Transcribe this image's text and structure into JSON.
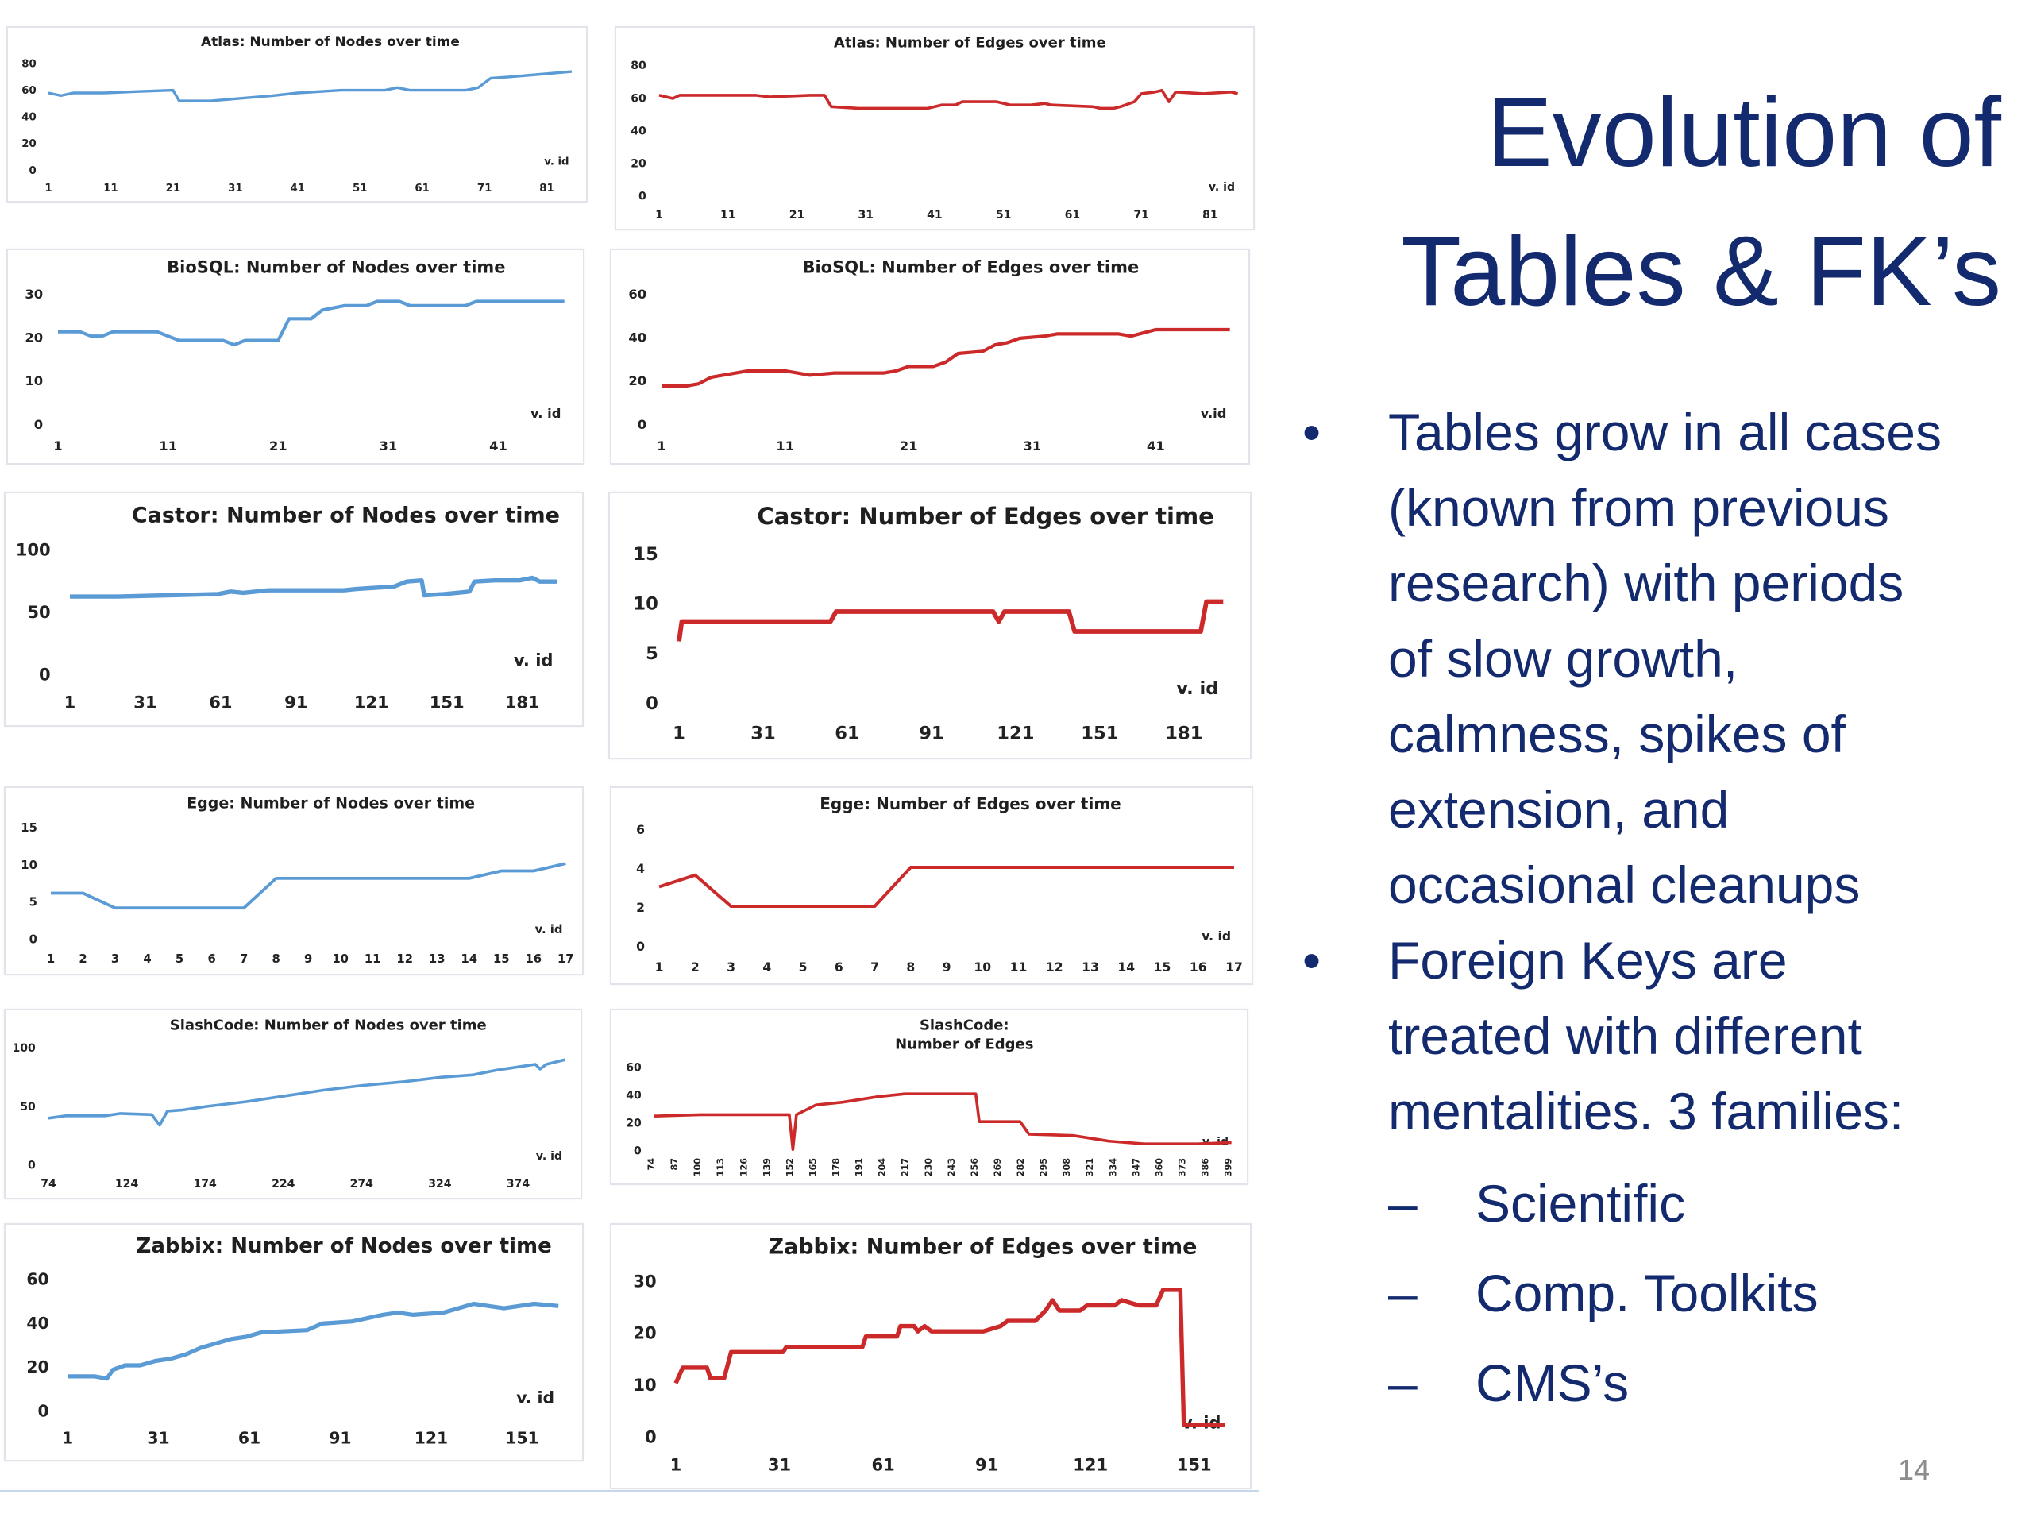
{
  "slide": {
    "title_lines": [
      "Evolution of",
      "Tables & FK’s"
    ],
    "bullets": [
      {
        "lines": [
          "Tables grow in all cases",
          "(known from previous",
          "research) with periods",
          "of slow growth,",
          "calmness, spikes of",
          "extension, and",
          "occasional cleanups"
        ]
      },
      {
        "lines": [
          "Foreign Keys are",
          "treated with different",
          "mentalities. 3 families:"
        ],
        "sub": [
          "Scientific",
          "Comp. Toolkits",
          "CMS’s"
        ]
      }
    ],
    "bullet_glyph": "•",
    "dash_glyph": "–",
    "page_number": "14"
  },
  "colors": {
    "nodes": "#5b9bd5",
    "edges": "#cc2a2a",
    "title": "#132a6e"
  },
  "chart_data": [
    {
      "type": "line",
      "title": "Atlas: Number of Nodes over time",
      "xlabel": "v. id",
      "color": "nodes",
      "yticks": [
        0,
        20,
        40,
        60,
        80
      ],
      "ylim": [
        0,
        80
      ],
      "xlim": [
        1,
        85
      ],
      "xticks": [
        1,
        11,
        21,
        31,
        41,
        51,
        61,
        71,
        81
      ],
      "points": [
        [
          1,
          57
        ],
        [
          3,
          55
        ],
        [
          5,
          57
        ],
        [
          10,
          57
        ],
        [
          15,
          58
        ],
        [
          21,
          59
        ],
        [
          22,
          51
        ],
        [
          27,
          51
        ],
        [
          32,
          53
        ],
        [
          37,
          55
        ],
        [
          41,
          57
        ],
        [
          48,
          59
        ],
        [
          55,
          59
        ],
        [
          57,
          61
        ],
        [
          59,
          59
        ],
        [
          68,
          59
        ],
        [
          70,
          61
        ],
        [
          72,
          68
        ],
        [
          75,
          69
        ],
        [
          80,
          71
        ],
        [
          85,
          73
        ]
      ]
    },
    {
      "type": "line",
      "title": "Atlas: Number of Edges over time",
      "xlabel": "v. id",
      "color": "edges",
      "yticks": [
        0,
        20,
        40,
        60,
        80
      ],
      "ylim": [
        0,
        80
      ],
      "xlim": [
        1,
        85
      ],
      "xticks": [
        1,
        11,
        21,
        31,
        41,
        51,
        61,
        71,
        81
      ],
      "points": [
        [
          1,
          61
        ],
        [
          3,
          59
        ],
        [
          4,
          61
        ],
        [
          15,
          61
        ],
        [
          17,
          60
        ],
        [
          23,
          61
        ],
        [
          25,
          61
        ],
        [
          26,
          54
        ],
        [
          30,
          53
        ],
        [
          40,
          53
        ],
        [
          42,
          55
        ],
        [
          44,
          55
        ],
        [
          45,
          57
        ],
        [
          50,
          57
        ],
        [
          52,
          55
        ],
        [
          55,
          55
        ],
        [
          57,
          56
        ],
        [
          58,
          55
        ],
        [
          64,
          54
        ],
        [
          65,
          53
        ],
        [
          67,
          53
        ],
        [
          68,
          54
        ],
        [
          70,
          57
        ],
        [
          71,
          62
        ],
        [
          73,
          63
        ],
        [
          74,
          64
        ],
        [
          75,
          57
        ],
        [
          76,
          63
        ],
        [
          80,
          62
        ],
        [
          84,
          63
        ],
        [
          85,
          62
        ]
      ]
    },
    {
      "type": "line",
      "title": "BioSQL: Number of Nodes over time",
      "xlabel": "v. id",
      "color": "nodes",
      "yticks": [
        0,
        10,
        20,
        30
      ],
      "ylim": [
        0,
        30
      ],
      "xlim": [
        1,
        47
      ],
      "xticks": [
        1,
        11,
        21,
        31,
        41
      ],
      "points": [
        [
          1,
          21
        ],
        [
          3,
          21
        ],
        [
          4,
          20
        ],
        [
          5,
          20
        ],
        [
          6,
          21
        ],
        [
          10,
          21
        ],
        [
          11,
          20
        ],
        [
          12,
          19
        ],
        [
          16,
          19
        ],
        [
          17,
          18
        ],
        [
          18,
          19
        ],
        [
          21,
          19
        ],
        [
          22,
          24
        ],
        [
          24,
          24
        ],
        [
          25,
          26
        ],
        [
          27,
          27
        ],
        [
          29,
          27
        ],
        [
          30,
          28
        ],
        [
          32,
          28
        ],
        [
          33,
          27
        ],
        [
          38,
          27
        ],
        [
          39,
          28
        ],
        [
          47,
          28
        ]
      ]
    },
    {
      "type": "line",
      "title": "BioSQL: Number of Edges over time",
      "xlabel": "v.id",
      "color": "edges",
      "yticks": [
        0,
        20,
        40,
        60
      ],
      "ylim": [
        0,
        60
      ],
      "xlim": [
        1,
        47
      ],
      "xticks": [
        1,
        11,
        21,
        31,
        41
      ],
      "points": [
        [
          1,
          17
        ],
        [
          3,
          17
        ],
        [
          4,
          18
        ],
        [
          5,
          21
        ],
        [
          6,
          22
        ],
        [
          8,
          24
        ],
        [
          11,
          24
        ],
        [
          12,
          23
        ],
        [
          13,
          22
        ],
        [
          15,
          23
        ],
        [
          19,
          23
        ],
        [
          20,
          24
        ],
        [
          21,
          26
        ],
        [
          23,
          26
        ],
        [
          24,
          28
        ],
        [
          25,
          32
        ],
        [
          27,
          33
        ],
        [
          28,
          36
        ],
        [
          29,
          37
        ],
        [
          30,
          39
        ],
        [
          32,
          40
        ],
        [
          33,
          41
        ],
        [
          38,
          41
        ],
        [
          39,
          40
        ],
        [
          41,
          43
        ],
        [
          47,
          43
        ]
      ]
    },
    {
      "type": "line",
      "title": "Castor: Number of Nodes over time",
      "xlabel": "v. id",
      "color": "nodes",
      "yticks": [
        0,
        50,
        100
      ],
      "ylim": [
        0,
        100
      ],
      "xlim": [
        1,
        195
      ],
      "xticks": [
        1,
        31,
        61,
        91,
        121,
        151,
        181
      ],
      "points": [
        [
          1,
          61
        ],
        [
          20,
          61
        ],
        [
          40,
          62
        ],
        [
          60,
          63
        ],
        [
          65,
          65
        ],
        [
          70,
          64
        ],
        [
          80,
          66
        ],
        [
          110,
          66
        ],
        [
          115,
          67
        ],
        [
          130,
          69
        ],
        [
          135,
          73
        ],
        [
          141,
          74
        ],
        [
          142,
          62
        ],
        [
          150,
          63
        ],
        [
          155,
          64
        ],
        [
          160,
          65
        ],
        [
          162,
          73
        ],
        [
          170,
          74
        ],
        [
          180,
          74
        ],
        [
          185,
          76
        ],
        [
          188,
          73
        ],
        [
          195,
          73
        ]
      ]
    },
    {
      "type": "line",
      "title": "Castor: Number of Edges over time",
      "xlabel": "v. id",
      "color": "edges",
      "yticks": [
        0,
        5,
        10,
        15
      ],
      "ylim": [
        0,
        15
      ],
      "xlim": [
        1,
        195
      ],
      "xticks": [
        1,
        31,
        61,
        91,
        121,
        151,
        181
      ],
      "points": [
        [
          1,
          6
        ],
        [
          2,
          8
        ],
        [
          55,
          8
        ],
        [
          57,
          9
        ],
        [
          113,
          9
        ],
        [
          115,
          8
        ],
        [
          117,
          9
        ],
        [
          140,
          9
        ],
        [
          142,
          7
        ],
        [
          187,
          7
        ],
        [
          189,
          10
        ],
        [
          195,
          10
        ]
      ]
    },
    {
      "type": "line",
      "title": "Egge: Number of Nodes over time",
      "xlabel": "v. id",
      "color": "nodes",
      "yticks": [
        0,
        5,
        10,
        15
      ],
      "ylim": [
        0,
        15
      ],
      "xlim": [
        1,
        17
      ],
      "xticks": [
        1,
        2,
        3,
        4,
        5,
        6,
        7,
        8,
        9,
        10,
        11,
        12,
        13,
        14,
        15,
        16,
        17
      ],
      "points": [
        [
          1,
          6
        ],
        [
          2,
          6
        ],
        [
          3,
          4
        ],
        [
          4,
          4
        ],
        [
          5,
          4
        ],
        [
          6,
          4
        ],
        [
          7,
          4
        ],
        [
          8,
          8
        ],
        [
          9,
          8
        ],
        [
          10,
          8
        ],
        [
          11,
          8
        ],
        [
          12,
          8
        ],
        [
          13,
          8
        ],
        [
          14,
          8
        ],
        [
          15,
          9
        ],
        [
          16,
          9
        ],
        [
          17,
          10
        ]
      ]
    },
    {
      "type": "line",
      "title": "Egge: Number of Edges over time",
      "xlabel": "v. id",
      "color": "edges",
      "yticks": [
        0,
        2,
        4,
        6
      ],
      "ylim": [
        0,
        6
      ],
      "xlim": [
        1,
        17
      ],
      "xticks": [
        1,
        2,
        3,
        4,
        5,
        6,
        7,
        8,
        9,
        10,
        11,
        12,
        13,
        14,
        15,
        16,
        17
      ],
      "points": [
        [
          1,
          3
        ],
        [
          2,
          3.6
        ],
        [
          3,
          2
        ],
        [
          4,
          2
        ],
        [
          5,
          2
        ],
        [
          6,
          2
        ],
        [
          7,
          2
        ],
        [
          8,
          4
        ],
        [
          9,
          4
        ],
        [
          10,
          4
        ],
        [
          11,
          4
        ],
        [
          12,
          4
        ],
        [
          13,
          4
        ],
        [
          14,
          4
        ],
        [
          15,
          4
        ],
        [
          16,
          4
        ],
        [
          17,
          4
        ]
      ]
    },
    {
      "type": "line",
      "title": "SlashCode: Number of Nodes over time",
      "xlabel": "v. id",
      "color": "nodes",
      "yticks": [
        0,
        50,
        100
      ],
      "ylim": [
        0,
        100
      ],
      "xlim": [
        74,
        404
      ],
      "xticks": [
        74,
        124,
        174,
        224,
        274,
        324,
        374
      ],
      "points": [
        [
          74,
          39
        ],
        [
          85,
          41
        ],
        [
          110,
          41
        ],
        [
          120,
          43
        ],
        [
          140,
          42
        ],
        [
          145,
          33
        ],
        [
          150,
          45
        ],
        [
          160,
          46
        ],
        [
          175,
          49
        ],
        [
          200,
          53
        ],
        [
          225,
          58
        ],
        [
          250,
          63
        ],
        [
          275,
          67
        ],
        [
          300,
          70
        ],
        [
          325,
          74
        ],
        [
          345,
          76
        ],
        [
          360,
          80
        ],
        [
          385,
          85
        ],
        [
          388,
          81
        ],
        [
          392,
          85
        ],
        [
          404,
          89
        ]
      ]
    },
    {
      "type": "line",
      "title": "SlashCode:\nNumber of Edges",
      "xlabel": "v. id",
      "color": "edges",
      "yticks": [
        0,
        20,
        40,
        60
      ],
      "ylim": [
        0,
        60
      ],
      "xlim": [
        74,
        399
      ],
      "xticks": [
        74,
        87,
        100,
        113,
        126,
        139,
        152,
        165,
        178,
        191,
        204,
        217,
        230,
        243,
        256,
        269,
        282,
        295,
        308,
        321,
        334,
        347,
        360,
        373,
        386,
        399
      ],
      "points": [
        [
          74,
          24
        ],
        [
          100,
          25
        ],
        [
          150,
          25
        ],
        [
          152,
          0
        ],
        [
          154,
          25
        ],
        [
          165,
          32
        ],
        [
          180,
          34
        ],
        [
          200,
          38
        ],
        [
          215,
          40
        ],
        [
          255,
          40
        ],
        [
          257,
          20
        ],
        [
          280,
          20
        ],
        [
          285,
          11
        ],
        [
          310,
          10
        ],
        [
          330,
          6
        ],
        [
          350,
          4
        ],
        [
          380,
          4
        ],
        [
          399,
          5
        ]
      ]
    },
    {
      "type": "line",
      "title": "Zabbix: Number of Nodes over time",
      "xlabel": "v. id",
      "color": "nodes",
      "yticks": [
        0,
        20,
        40,
        60
      ],
      "ylim": [
        0,
        60
      ],
      "xlim": [
        1,
        163
      ],
      "xticks": [
        1,
        31,
        61,
        91,
        121,
        151
      ],
      "points": [
        [
          1,
          15
        ],
        [
          10,
          15
        ],
        [
          14,
          14
        ],
        [
          16,
          18
        ],
        [
          20,
          20
        ],
        [
          25,
          20
        ],
        [
          30,
          22
        ],
        [
          35,
          23
        ],
        [
          40,
          25
        ],
        [
          45,
          28
        ],
        [
          55,
          32
        ],
        [
          60,
          33
        ],
        [
          65,
          35
        ],
        [
          80,
          36
        ],
        [
          85,
          39
        ],
        [
          95,
          40
        ],
        [
          105,
          43
        ],
        [
          110,
          44
        ],
        [
          115,
          43
        ],
        [
          125,
          44
        ],
        [
          130,
          46
        ],
        [
          135,
          48
        ],
        [
          140,
          47
        ],
        [
          145,
          46
        ],
        [
          150,
          47
        ],
        [
          155,
          48
        ],
        [
          163,
          47
        ]
      ]
    },
    {
      "type": "line",
      "title": "Zabbix: Number of Edges over time",
      "xlabel": "v. id",
      "color": "edges",
      "yticks": [
        0,
        10,
        20,
        30
      ],
      "ylim": [
        0,
        30
      ],
      "xlim": [
        1,
        160
      ],
      "xticks": [
        1,
        31,
        61,
        91,
        121,
        151
      ],
      "points": [
        [
          1,
          10
        ],
        [
          3,
          13
        ],
        [
          10,
          13
        ],
        [
          11,
          11
        ],
        [
          15,
          11
        ],
        [
          17,
          16
        ],
        [
          32,
          16
        ],
        [
          33,
          17
        ],
        [
          55,
          17
        ],
        [
          56,
          19
        ],
        [
          65,
          19
        ],
        [
          66,
          21
        ],
        [
          70,
          21
        ],
        [
          71,
          20
        ],
        [
          73,
          21
        ],
        [
          75,
          20
        ],
        [
          90,
          20
        ],
        [
          95,
          21
        ],
        [
          97,
          22
        ],
        [
          105,
          22
        ],
        [
          108,
          24
        ],
        [
          110,
          26
        ],
        [
          112,
          24
        ],
        [
          118,
          24
        ],
        [
          120,
          25
        ],
        [
          128,
          25
        ],
        [
          130,
          26
        ],
        [
          135,
          25
        ],
        [
          140,
          25
        ],
        [
          142,
          28
        ],
        [
          147,
          28
        ],
        [
          148,
          2
        ],
        [
          160,
          2
        ]
      ]
    }
  ]
}
